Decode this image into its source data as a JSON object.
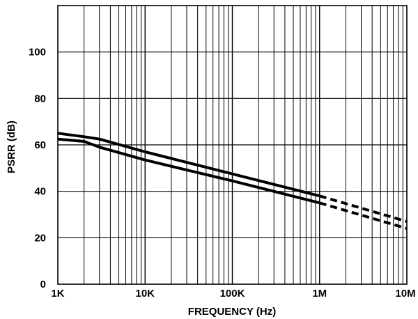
{
  "chart_data": {
    "type": "line",
    "title": "",
    "xlabel": "FREQUENCY (Hz)",
    "ylabel": "PSRR (dB)",
    "xscale": "log",
    "xlim": [
      1000,
      10000000
    ],
    "ylim": [
      0,
      120
    ],
    "grid": true,
    "x_tick_labels": [
      "1K",
      "10K",
      "100K",
      "1M",
      "10M"
    ],
    "x_tick_values": [
      1000,
      10000,
      100000,
      1000000,
      10000000
    ],
    "y_tick_labels": [
      "0",
      "20",
      "40",
      "60",
      "80",
      "100"
    ],
    "y_tick_values": [
      0,
      20,
      40,
      60,
      80,
      100
    ],
    "series": [
      {
        "style": "solid",
        "x": [
          1000,
          2000,
          3000,
          10000,
          100000,
          1000000
        ],
        "y": [
          65,
          63.5,
          62.5,
          57,
          47.5,
          38
        ]
      },
      {
        "style": "solid",
        "x": [
          1000,
          2000,
          3000,
          10000,
          100000,
          1000000
        ],
        "y": [
          62.5,
          61.5,
          59,
          53.5,
          44.5,
          35
        ]
      },
      {
        "style": "dashed",
        "x": [
          1000000,
          10000000
        ],
        "y": [
          38,
          27
        ]
      },
      {
        "style": "dashed",
        "x": [
          1000000,
          10000000
        ],
        "y": [
          35,
          24
        ]
      }
    ]
  },
  "colors": {
    "line": "#000000",
    "grid": "#000000",
    "background": "#ffffff"
  }
}
